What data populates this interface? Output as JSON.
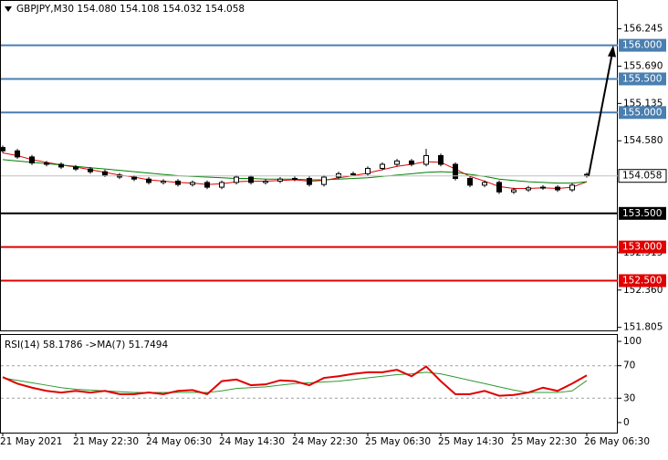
{
  "chart_data": {
    "type": "candlestick",
    "title": "GBPJPY,M30  154.080 154.108 154.032 154.058",
    "categories": [
      "21 May 2021",
      null,
      null,
      null,
      null,
      "21 May 22:30",
      null,
      null,
      null,
      null,
      "24 May 06:30",
      null,
      null,
      null,
      null,
      "24 May 14:30",
      null,
      null,
      null,
      null,
      "24 May 22:30",
      null,
      null,
      null,
      null,
      "25 May 06:30",
      null,
      null,
      null,
      null,
      "25 May 14:30",
      null,
      null,
      null,
      null,
      "25 May 22:30",
      null,
      null,
      null,
      null,
      "26 May 06:30"
    ],
    "open": [
      154.48,
      154.43,
      154.34,
      154.25,
      154.23,
      154.19,
      154.16,
      154.12,
      154.07,
      154.04,
      154.01,
      153.96,
      153.98,
      153.93,
      153.96,
      153.89,
      153.96,
      154.04,
      153.96,
      153.98,
      154.01,
      154.02,
      153.93,
      154.04,
      154.09,
      154.09,
      154.17,
      154.23,
      154.28,
      154.23,
      154.36,
      154.23,
      154.02,
      153.92,
      153.96,
      153.82,
      153.85,
      153.88,
      153.89,
      153.85,
      154.08
    ],
    "high": [
      154.51,
      154.46,
      154.37,
      154.28,
      154.26,
      154.22,
      154.19,
      154.15,
      154.1,
      154.07,
      154.04,
      154.01,
      154.01,
      153.99,
      153.99,
      153.99,
      154.07,
      154.07,
      154.01,
      154.04,
      154.05,
      154.05,
      154.07,
      154.12,
      154.12,
      154.2,
      154.26,
      154.31,
      154.31,
      154.46,
      154.39,
      154.26,
      154.05,
      153.99,
      153.99,
      153.88,
      153.91,
      153.92,
      153.92,
      153.95,
      154.108
    ],
    "low": [
      154.4,
      154.31,
      154.22,
      154.2,
      154.16,
      154.13,
      154.09,
      154.04,
      154.01,
      153.98,
      153.93,
      153.93,
      153.9,
      153.9,
      153.86,
      153.86,
      153.93,
      153.93,
      153.93,
      153.95,
      153.98,
      153.9,
      153.9,
      154.01,
      154.06,
      154.06,
      154.14,
      154.2,
      154.2,
      154.2,
      154.2,
      153.99,
      153.89,
      153.89,
      153.79,
      153.79,
      153.82,
      153.85,
      153.82,
      153.82,
      154.032
    ],
    "close": [
      154.43,
      154.34,
      154.25,
      154.23,
      154.19,
      154.16,
      154.12,
      154.07,
      154.04,
      154.01,
      153.96,
      153.98,
      153.93,
      153.96,
      153.89,
      153.96,
      154.04,
      153.96,
      153.98,
      154.01,
      154.02,
      153.93,
      154.04,
      154.09,
      154.09,
      154.17,
      154.23,
      154.28,
      154.23,
      154.36,
      154.23,
      154.02,
      153.92,
      153.96,
      153.82,
      153.85,
      153.88,
      153.89,
      153.85,
      153.92,
      154.058
    ],
    "overlays": [
      {
        "color": "#e00000",
        "values": [
          154.4,
          154.36,
          154.3,
          154.26,
          154.22,
          154.19,
          154.15,
          154.11,
          154.07,
          154.04,
          154.0,
          153.98,
          153.96,
          153.95,
          153.93,
          153.94,
          153.97,
          153.98,
          153.98,
          153.99,
          154.0,
          153.98,
          153.99,
          154.03,
          154.06,
          154.1,
          154.15,
          154.2,
          154.23,
          154.27,
          154.26,
          154.16,
          154.05,
          153.98,
          153.9,
          153.87,
          153.87,
          153.88,
          153.87,
          153.89,
          153.97
        ]
      },
      {
        "color": "#008000",
        "values": [
          154.3,
          154.28,
          154.26,
          154.24,
          154.22,
          154.2,
          154.18,
          154.16,
          154.14,
          154.12,
          154.1,
          154.08,
          154.06,
          154.05,
          154.04,
          154.03,
          154.02,
          154.02,
          154.01,
          154.01,
          154.01,
          154.0,
          154.0,
          154.01,
          154.02,
          154.03,
          154.05,
          154.07,
          154.09,
          154.11,
          154.12,
          154.11,
          154.08,
          154.05,
          154.01,
          153.99,
          153.97,
          153.96,
          153.95,
          153.95,
          153.97
        ]
      }
    ],
    "ylim": [
      151.76,
      156.66
    ],
    "yticks": [
      {
        "value": 156.245,
        "label": "156.245"
      },
      {
        "value": 155.69,
        "label": "155.690"
      },
      {
        "value": 155.135,
        "label": "155.135"
      },
      {
        "value": 154.58,
        "label": "154.580"
      },
      {
        "value": 152.915,
        "label": "152.915"
      },
      {
        "value": 152.36,
        "label": "152.360"
      },
      {
        "value": 151.805,
        "label": "151.805"
      }
    ],
    "levels": [
      {
        "value": 156,
        "label": "156.000",
        "color": "#4a7fb0"
      },
      {
        "value": 155.5,
        "label": "155.500",
        "color": "#4a7fb0"
      },
      {
        "value": 155,
        "label": "155.000",
        "color": "#4a7fb0"
      },
      {
        "value": 153.5,
        "label": "153.500",
        "color": "#000000"
      },
      {
        "value": 153,
        "label": "153.000",
        "color": "#e00000"
      },
      {
        "value": 152.5,
        "label": "152.500",
        "color": "#e00000"
      }
    ],
    "current_price": 154.058,
    "rsi": {
      "title": "RSI(14) 58.1786  ->MA(7) 51.7494",
      "color": "#e00000",
      "values": [
        56,
        48,
        43,
        39,
        37,
        39,
        37,
        39,
        35,
        35,
        37,
        35,
        39,
        40,
        35,
        51,
        53,
        46,
        47,
        52,
        51,
        46,
        55,
        57,
        60,
        62,
        62,
        65,
        57,
        69,
        51,
        35,
        35,
        39,
        33,
        34,
        37,
        43,
        39,
        48,
        58.1786
      ],
      "ma_color": "#2e9a2e",
      "ma_values": [
        55,
        52,
        49,
        46,
        43,
        41,
        40,
        39,
        38,
        37,
        37,
        37,
        37,
        37,
        37,
        39,
        42,
        43,
        44,
        46,
        48,
        49,
        50,
        51,
        53,
        55,
        57,
        59,
        60,
        62,
        60,
        56,
        52,
        48,
        44,
        40,
        37,
        37,
        37,
        39,
        51.7494
      ],
      "ylim": [
        -12.4,
        107.9
      ],
      "yticks": [
        100,
        70,
        30,
        0
      ],
      "levels": [
        70,
        30
      ]
    }
  }
}
